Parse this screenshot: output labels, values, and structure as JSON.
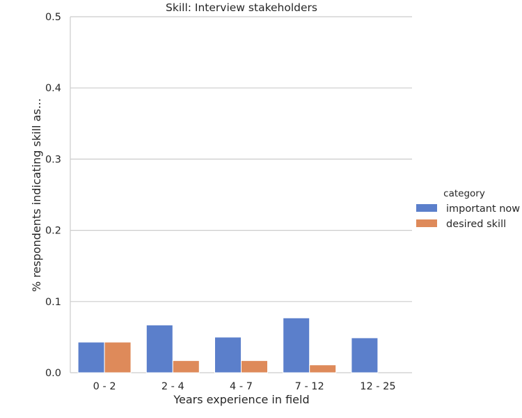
{
  "chart_data": {
    "type": "bar",
    "title": "Skill: Interview stakeholders",
    "xlabel": "Years experience in field",
    "ylabel": "% respondents indicating skill as...",
    "categories": [
      "0 - 2",
      "2 - 4",
      "4 - 7",
      "7 - 12",
      "12 - 25"
    ],
    "series": [
      {
        "name": "important now",
        "color": "#5b7fcb",
        "values": [
          0.043,
          0.067,
          0.05,
          0.077,
          0.049
        ]
      },
      {
        "name": "desired skill",
        "color": "#de8a5a",
        "values": [
          0.043,
          0.017,
          0.017,
          0.011,
          0.0
        ]
      }
    ],
    "ylim": [
      0,
      0.5
    ],
    "yticks": [
      "0.0",
      "0.1",
      "0.2",
      "0.3",
      "0.4",
      "0.5"
    ],
    "grid": true,
    "legend": {
      "title": "category",
      "placement": "right"
    }
  }
}
